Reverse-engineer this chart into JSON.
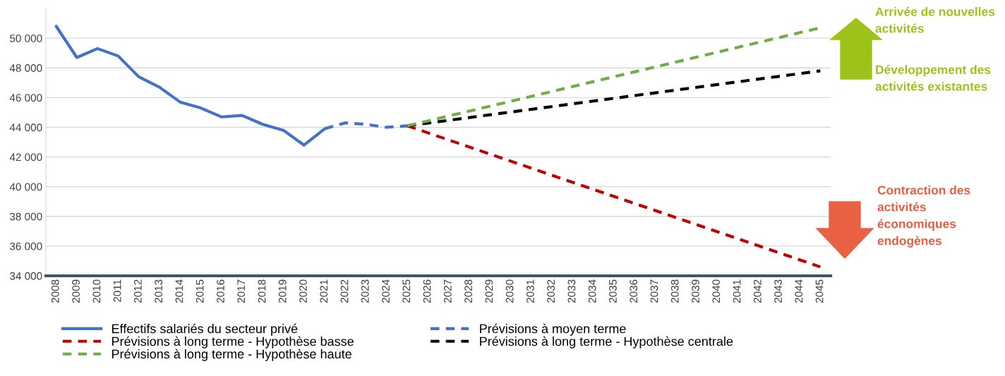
{
  "chart_data": {
    "type": "line",
    "x": [
      2008,
      2009,
      2010,
      2011,
      2012,
      2013,
      2014,
      2015,
      2016,
      2017,
      2018,
      2019,
      2020,
      2021
    ],
    "xlim": [
      2007.5,
      2045.5
    ],
    "xticks": [
      2008,
      2009,
      2010,
      2011,
      2012,
      2013,
      2014,
      2015,
      2016,
      2017,
      2018,
      2019,
      2020,
      2021,
      2022,
      2023,
      2024,
      2025,
      2026,
      2027,
      2028,
      2029,
      2030,
      2031,
      2032,
      2033,
      2034,
      2035,
      2036,
      2037,
      2038,
      2039,
      2040,
      2041,
      2042,
      2043,
      2044,
      2045
    ],
    "ylim": [
      34000,
      52000
    ],
    "yticks": [
      {
        "value": 34000,
        "label": "34 000"
      },
      {
        "value": 36000,
        "label": "36 000"
      },
      {
        "value": 38000,
        "label": "38 000"
      },
      {
        "value": 40000,
        "label": "40 000"
      },
      {
        "value": 42000,
        "label": "42 000"
      },
      {
        "value": 44000,
        "label": "44 000"
      },
      {
        "value": 46000,
        "label": "46 000"
      },
      {
        "value": 48000,
        "label": "48 000"
      },
      {
        "value": 50000,
        "label": "50 000"
      }
    ],
    "grid": "y",
    "legend": "bottom",
    "marker": "none",
    "series": [
      {
        "name": "Effectifs salariés du secteur privé",
        "color": "#4472c4",
        "line_style": "solid",
        "values": [
          50800,
          48700,
          49300,
          48800,
          47400,
          46700,
          45700,
          45300,
          44700,
          44800,
          44200,
          43800,
          42800,
          43900
        ]
      },
      {
        "name": "Prévisions à moyen terme",
        "color": "#4472c4",
        "line_style": "dashed",
        "x": [
          2021,
          2022,
          2023,
          2024,
          2025
        ],
        "values": [
          43900,
          44300,
          44200,
          44000,
          44100
        ]
      },
      {
        "name": "Prévisions à long terme - Hypothèse basse",
        "color": "#c00000",
        "line_style": "dashed",
        "x": [
          2025,
          2045
        ],
        "values": [
          44100,
          34600
        ]
      },
      {
        "name": "Prévisions à long terme - Hypothèse centrale",
        "color": "#000000",
        "line_style": "dashed",
        "x": [
          2025,
          2045
        ],
        "values": [
          44100,
          47800
        ]
      },
      {
        "name": "Prévisions à long terme - Hypothèse haute",
        "color": "#70ad47",
        "line_style": "dashed",
        "x": [
          2025,
          2045
        ],
        "values": [
          44100,
          50700
        ]
      }
    ],
    "annotations": [
      "Arrivée de nouvelles\nactivités",
      "Développement des\nactivités existantes",
      "Contraction des\nactivités\néconomiques\nendogènes"
    ]
  }
}
